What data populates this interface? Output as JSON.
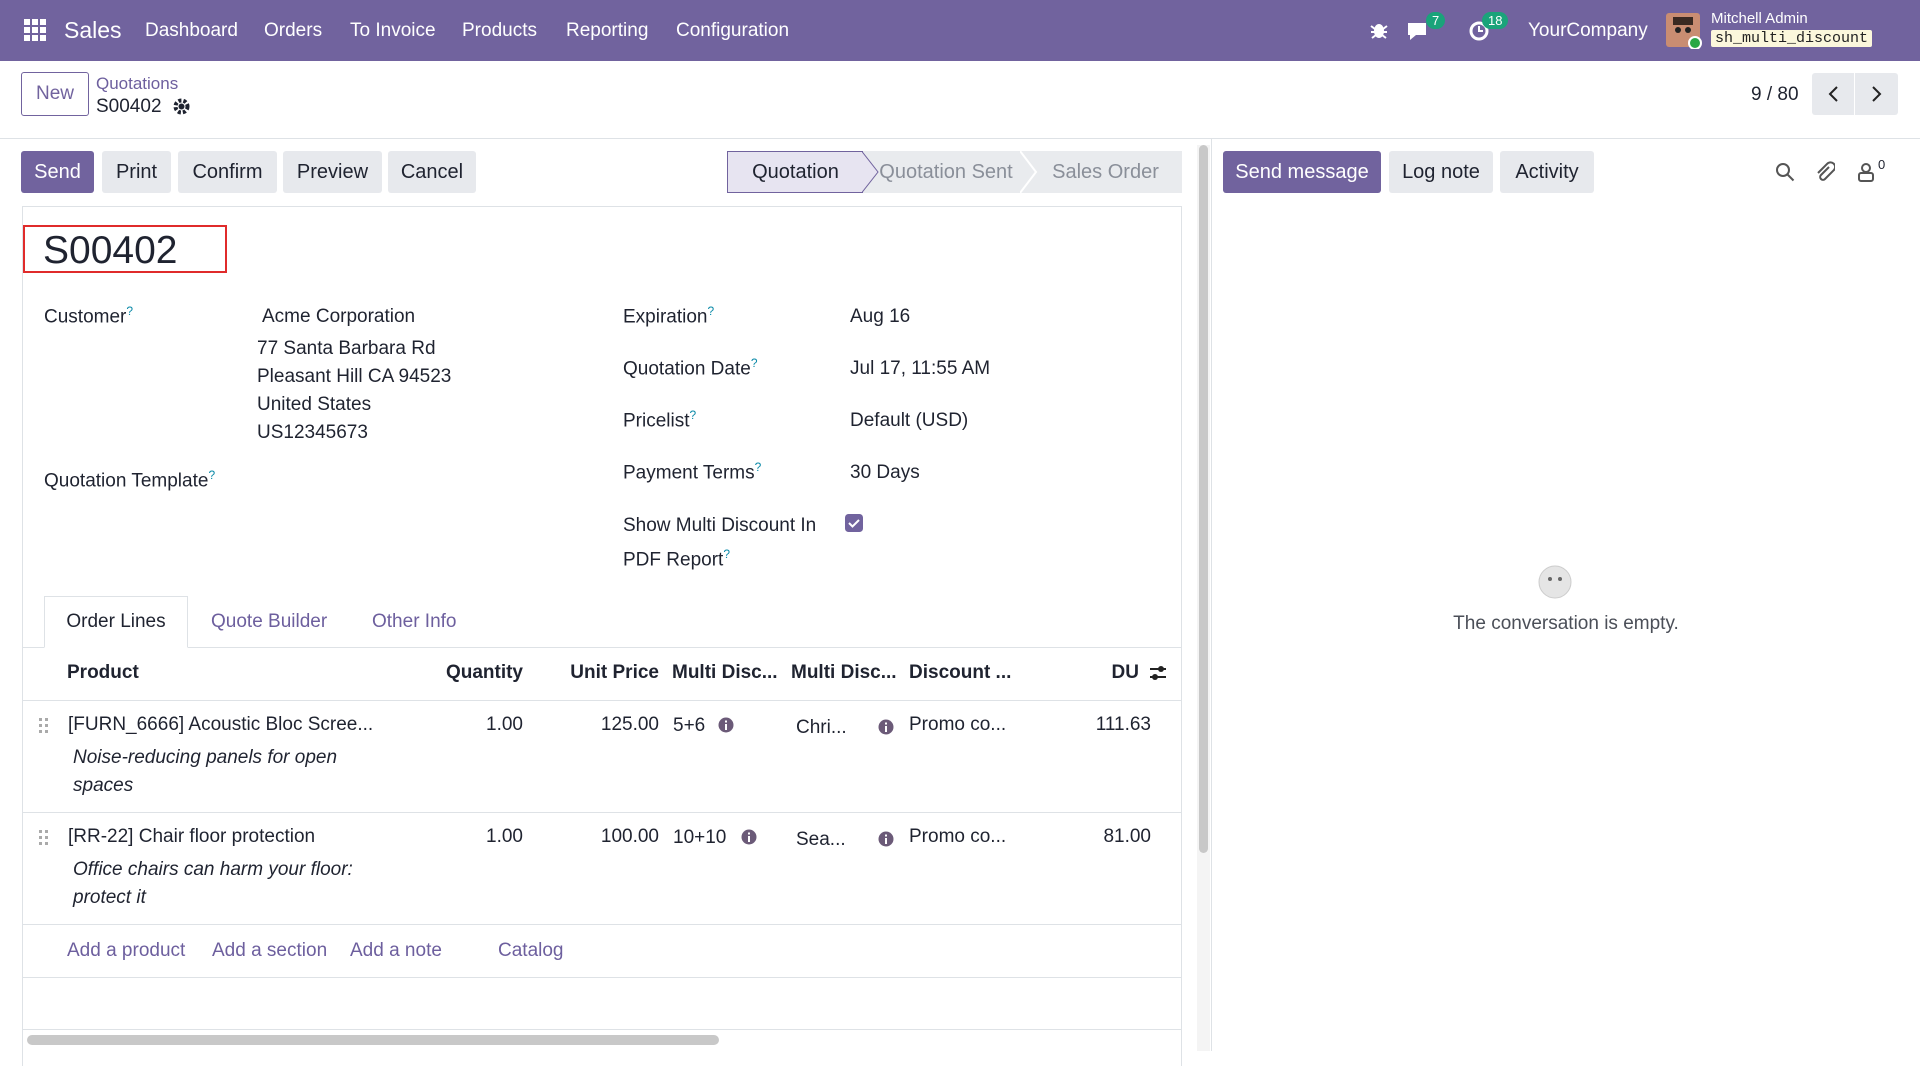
{
  "navbar": {
    "app": "Sales",
    "menu": [
      "Dashboard",
      "Orders",
      "To Invoice",
      "Products",
      "Reporting",
      "Configuration"
    ],
    "chat_count": "7",
    "activity_count": "18",
    "company": "YourCompany",
    "user": "Mitchell Admin",
    "database": "sh_multi_discount"
  },
  "breadcrumb": {
    "new": "New",
    "parent": "Quotations",
    "current": "S00402",
    "pager": "9 / 80"
  },
  "buttons": [
    "Send",
    "Print",
    "Confirm",
    "Preview",
    "Cancel"
  ],
  "statusbar": [
    "Quotation",
    "Quotation Sent",
    "Sales Order"
  ],
  "form": {
    "name": "S00402",
    "customer": {
      "label": "Customer",
      "lines": [
        "Acme Corporation",
        "77 Santa Barbara Rd",
        "Pleasant Hill CA 94523",
        "United States",
        "US12345673"
      ]
    },
    "template": {
      "label": "Quotation Template"
    },
    "fields": [
      {
        "label": "Expiration",
        "value": "Aug 16"
      },
      {
        "label": "Quotation Date",
        "value": "Jul 17, 11:55 AM"
      },
      {
        "label": "Pricelist",
        "value": "Default (USD)"
      },
      {
        "label": "Payment Terms",
        "value": "30 Days"
      }
    ],
    "pdf_option": {
      "label": "Show Multi Discount In PDF Report",
      "checked": true
    },
    "tabs": [
      "Order Lines",
      "Quote Builder",
      "Other Info"
    ],
    "columns": [
      "Product",
      "Quantity",
      "Unit Price",
      "Multi Disc...",
      "Multi Disc...",
      "Discount ...",
      "DU"
    ],
    "rows": [
      {
        "product": "[FURN_6666] Acoustic Bloc Scree...",
        "description": "Noise-reducing panels for open spaces",
        "quantity": "1.00",
        "unit_price": "125.00",
        "multi_discount": "5+6",
        "multi_discount_2": "Chri...",
        "discount": "Promo co...",
        "du": "111.63"
      },
      {
        "product": "[RR-22] Chair floor protection",
        "description": "Office chairs can harm your floor: protect it",
        "quantity": "1.00",
        "unit_price": "100.00",
        "multi_discount": "10+10",
        "multi_discount_2": "Sea...",
        "discount": "Promo co...",
        "du": "81.00"
      }
    ],
    "add_links": [
      "Add a product",
      "Add a section",
      "Add a note",
      "Catalog"
    ]
  },
  "chatter": {
    "buttons": [
      "Send message",
      "Log note",
      "Activity"
    ],
    "followers": "0",
    "empty": "The conversation is empty."
  }
}
